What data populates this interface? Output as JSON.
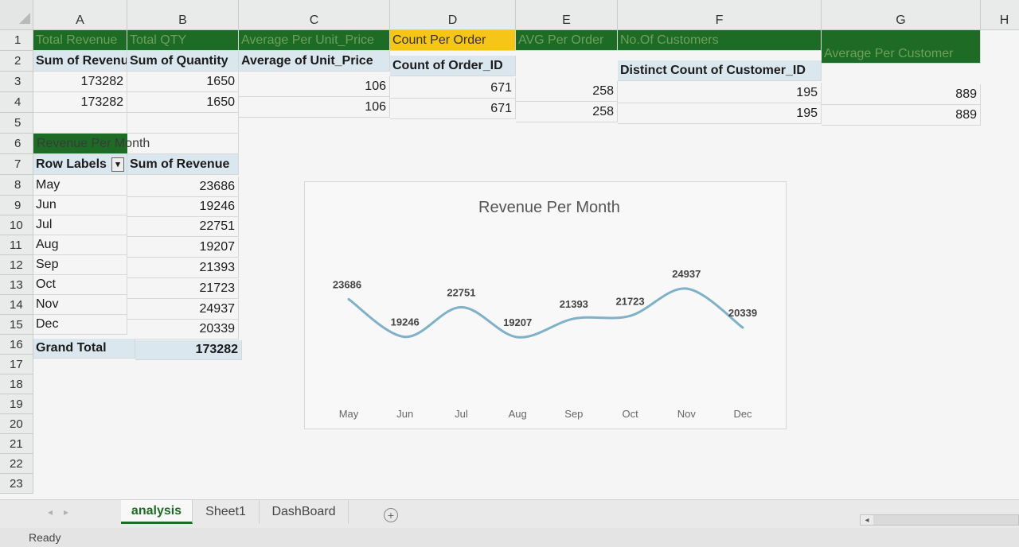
{
  "columns": [
    "A",
    "B",
    "C",
    "D",
    "E",
    "F",
    "G",
    "H"
  ],
  "rows": [
    "1",
    "2",
    "3",
    "4",
    "5",
    "6",
    "7",
    "8",
    "9",
    "10",
    "11",
    "12",
    "13",
    "14",
    "15",
    "16",
    "17",
    "18",
    "19",
    "20",
    "21",
    "22",
    "23"
  ],
  "header_row": {
    "a1": "Total Revenue",
    "b1": "Total QTY",
    "c1": "Average Per Unit_Price",
    "d1": "Count Per Order",
    "e1": "AVG Per Order",
    "f1": "No.Of Customers",
    "g1": "Average Per Customer"
  },
  "pivot_headers": {
    "a2": "Sum of Revenu",
    "b2": "Sum of Quantity",
    "c2": "Average of Unit_Price",
    "d2": "Count of Order_ID",
    "f2": "Distinct Count of Customer_ID"
  },
  "values_row3": {
    "a": "173282",
    "b": "1650",
    "c": "106",
    "d": "671",
    "e": "258",
    "f": "195",
    "g": "889"
  },
  "values_row4": {
    "a": "173282",
    "b": "1650",
    "c": "106",
    "d": "671",
    "e": "258",
    "f": "195",
    "g": "889"
  },
  "pivot": {
    "title": "Revenue Per Month",
    "row_labels": "Row Labels",
    "sum_label": "Sum of Revenue",
    "filter_icon": "filter-dropdown-icon",
    "rows": [
      {
        "month": "May",
        "value": "23686"
      },
      {
        "month": "Jun",
        "value": "19246"
      },
      {
        "month": "Jul",
        "value": "22751"
      },
      {
        "month": "Aug",
        "value": "19207"
      },
      {
        "month": "Sep",
        "value": "21393"
      },
      {
        "month": "Oct",
        "value": "21723"
      },
      {
        "month": "Nov",
        "value": "24937"
      },
      {
        "month": "Dec",
        "value": "20339"
      }
    ],
    "grand_total_label": "Grand Total",
    "grand_total_value": "173282"
  },
  "chart_data": {
    "type": "line",
    "title": "Revenue Per Month",
    "categories": [
      "May",
      "Jun",
      "Jul",
      "Aug",
      "Sep",
      "Oct",
      "Nov",
      "Dec"
    ],
    "series": [
      {
        "values": [
          23686,
          19246,
          22751,
          19207,
          21393,
          21723,
          24937,
          20339
        ]
      }
    ],
    "xlabel": "",
    "ylabel": "",
    "ylim": [
      15000,
      30000
    ],
    "grid": false,
    "line_color": "#7fb1c8",
    "data_labels": true
  },
  "tabs": [
    {
      "label": "analysis",
      "active": true
    },
    {
      "label": "Sheet1",
      "active": false
    },
    {
      "label": "DashBoard",
      "active": false
    }
  ],
  "add_sheet_icon": "plus-circle-icon",
  "status": "Ready",
  "colors": {
    "header_green": "#1e6b25",
    "header_yellow": "#f5c518",
    "pivot_blue": "#dbe7ee"
  }
}
